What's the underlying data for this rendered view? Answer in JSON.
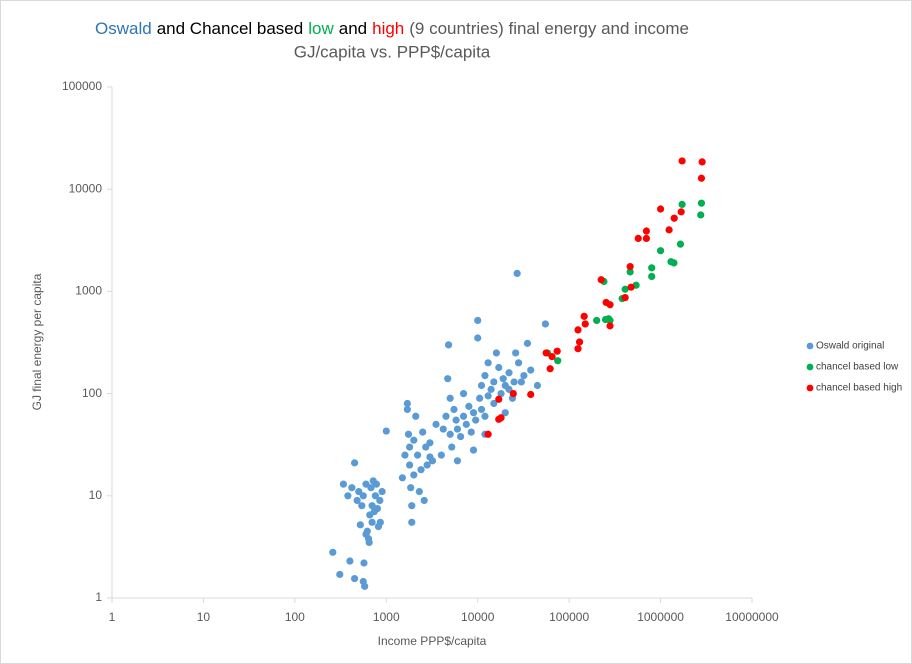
{
  "chart_data": {
    "type": "scatter",
    "title_parts": [
      {
        "text": "Oswald",
        "color": "#2e75b6"
      },
      {
        "text": "and Chancel based",
        "color": "#000000"
      },
      {
        "text": "low",
        "color": "#00b050"
      },
      {
        "text": "and",
        "color": "#000000"
      },
      {
        "text": "high",
        "color": "#ff0000"
      },
      {
        "text": "(9 countries) final energy and income",
        "color": "#595959"
      }
    ],
    "subtitle": "GJ/capita vs. PPP$/capita",
    "x_label": "Income PPP$/capita",
    "y_label": "GJ final energy per capita",
    "log_x": true,
    "log_y": true,
    "xlim": [
      1,
      10000000
    ],
    "ylim": [
      1,
      100000
    ],
    "xticks": [
      1,
      10,
      100,
      1000,
      10000,
      100000,
      1000000,
      10000000
    ],
    "yticks": [
      1,
      10,
      100,
      1000,
      10000,
      100000
    ],
    "legend": "right",
    "series": [
      {
        "name": "Oswald original",
        "color": "#5b9bd5",
        "x": [
          260,
          310,
          400,
          450,
          560,
          580,
          570,
          340,
          380,
          420,
          450,
          480,
          500,
          520,
          540,
          560,
          600,
          620,
          640,
          660,
          680,
          700,
          720,
          760,
          780,
          800,
          820,
          850,
          900,
          1000,
          600,
          650,
          700,
          740,
          860,
          1500,
          1600,
          1700,
          1700,
          1750,
          1800,
          1800,
          1850,
          1900,
          1900,
          2000,
          2000,
          2100,
          2200,
          2300,
          2400,
          2500,
          2600,
          2700,
          2800,
          3000,
          3200,
          3500,
          4000,
          4200,
          4500,
          4700,
          4800,
          5000,
          5000,
          5200,
          5500,
          5800,
          6000,
          6500,
          7000,
          7000,
          7500,
          8000,
          8500,
          9000,
          9500,
          10000,
          10000,
          10500,
          11000,
          11000,
          12000,
          12000,
          13000,
          13000,
          14000,
          15000,
          15000,
          16000,
          17000,
          18000,
          19000,
          20000,
          20000,
          22000,
          22000,
          24000,
          25000,
          26000,
          27000,
          28000,
          30000,
          32000,
          35000,
          38000,
          45000,
          55000,
          12000,
          9000,
          6000,
          3000
        ],
        "y": [
          2.8,
          1.7,
          2.3,
          1.55,
          1.45,
          1.3,
          2.2,
          13,
          10,
          12,
          21,
          9,
          11,
          5.2,
          8,
          10,
          13,
          4.5,
          3.8,
          6.5,
          12,
          8,
          14,
          10,
          13,
          7.5,
          5,
          9,
          11,
          43,
          4.2,
          3.5,
          5.5,
          7,
          5.5,
          15,
          25,
          80,
          70,
          40,
          30,
          20,
          12,
          8,
          5.5,
          16,
          35,
          60,
          25,
          11,
          18,
          42,
          9,
          30,
          20,
          33,
          22,
          50,
          25,
          45,
          60,
          140,
          300,
          90,
          40,
          30,
          70,
          55,
          45,
          38,
          100,
          60,
          50,
          75,
          42,
          65,
          55,
          350,
          520,
          90,
          120,
          70,
          150,
          60,
          200,
          95,
          110,
          80,
          130,
          250,
          180,
          100,
          140,
          120,
          65,
          110,
          160,
          90,
          130,
          250,
          1500,
          200,
          130,
          150,
          310,
          170,
          120,
          480,
          40,
          28,
          22,
          24
        ]
      },
      {
        "name": "chancel based low",
        "color": "#00b050",
        "x": [
          1720000,
          2800000,
          2750000,
          1000000,
          1650000,
          1300000,
          1400000,
          800000,
          800000,
          540000,
          465000,
          410000,
          240000,
          200000,
          250000,
          270000,
          280000,
          380000,
          75000,
          58000
        ],
        "y": [
          7100,
          7300,
          5600,
          2500,
          2900,
          1950,
          1900,
          1700,
          1400,
          1150,
          1550,
          1050,
          1250,
          520,
          530,
          540,
          520,
          850,
          210,
          250
        ]
      },
      {
        "name": "chancel based high",
        "color": "#ff0000",
        "x": [
          1720000,
          2850000,
          2800000,
          1410000,
          1680000,
          1000000,
          1240000,
          700000,
          570000,
          700000,
          465000,
          224000,
          254000,
          280000,
          476000,
          410000,
          146000,
          150000,
          280000,
          125000,
          130000,
          125000,
          74000,
          56000,
          65000,
          62000,
          24500,
          38000,
          17000,
          17000,
          18000,
          13000
        ],
        "y": [
          18900,
          18500,
          12800,
          5200,
          6000,
          6400,
          4000,
          3900,
          3300,
          3300,
          1750,
          1300,
          780,
          740,
          1100,
          870,
          570,
          480,
          460,
          420,
          320,
          275,
          260,
          250,
          230,
          175,
          100,
          98,
          88,
          56,
          58,
          40
        ]
      }
    ]
  }
}
